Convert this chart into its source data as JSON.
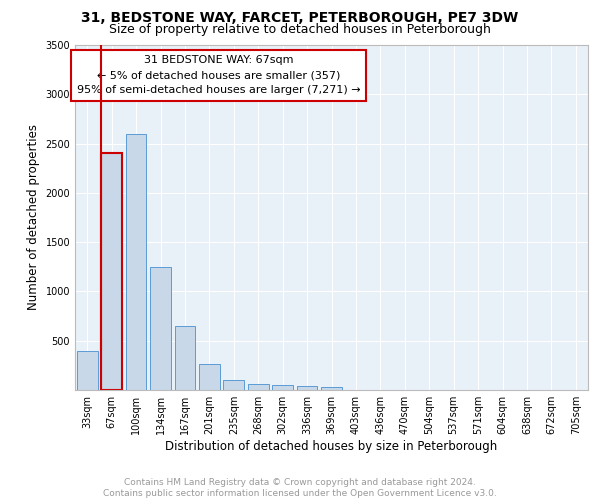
{
  "title": "31, BEDSTONE WAY, FARCET, PETERBOROUGH, PE7 3DW",
  "subtitle": "Size of property relative to detached houses in Peterborough",
  "xlabel": "Distribution of detached houses by size in Peterborough",
  "ylabel": "Number of detached properties",
  "categories": [
    "33sqm",
    "67sqm",
    "100sqm",
    "134sqm",
    "167sqm",
    "201sqm",
    "235sqm",
    "268sqm",
    "302sqm",
    "336sqm",
    "369sqm",
    "403sqm",
    "436sqm",
    "470sqm",
    "504sqm",
    "537sqm",
    "571sqm",
    "604sqm",
    "638sqm",
    "672sqm",
    "705sqm"
  ],
  "values": [
    400,
    2400,
    2600,
    1250,
    650,
    260,
    100,
    60,
    55,
    40,
    30,
    0,
    0,
    0,
    0,
    0,
    0,
    0,
    0,
    0,
    0
  ],
  "bar_color": "#c8d8e8",
  "bar_edge_color": "#5b9bd5",
  "highlight_bar_index": 1,
  "highlight_bar_edge_color": "#cc0000",
  "vline_color": "#cc0000",
  "annotation_text": "31 BEDSTONE WAY: 67sqm\n← 5% of detached houses are smaller (357)\n95% of semi-detached houses are larger (7,271) →",
  "annotation_box_color": "#ffffff",
  "annotation_box_edge_color": "#cc0000",
  "ylim": [
    0,
    3500
  ],
  "yticks": [
    0,
    500,
    1000,
    1500,
    2000,
    2500,
    3000,
    3500
  ],
  "plot_background_color": "#e8f0f8",
  "grid_color": "#ffffff",
  "footer_line1": "Contains HM Land Registry data © Crown copyright and database right 2024.",
  "footer_line2": "Contains public sector information licensed under the Open Government Licence v3.0.",
  "title_fontsize": 10,
  "subtitle_fontsize": 9,
  "xlabel_fontsize": 8.5,
  "ylabel_fontsize": 8.5,
  "tick_fontsize": 7,
  "annotation_fontsize": 8,
  "footer_fontsize": 6.5
}
